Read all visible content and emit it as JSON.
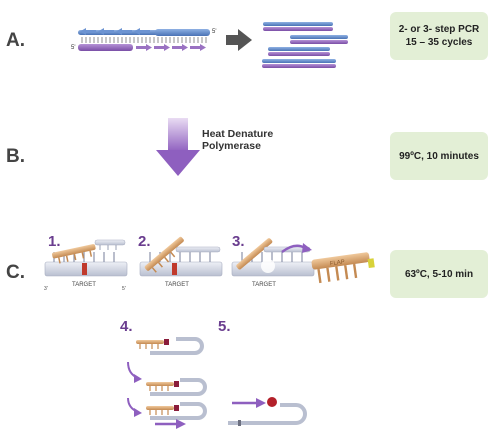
{
  "stages": [
    {
      "letter": "A.",
      "conditions": [
        "2- or 3- step PCR",
        "15 – 35 cycles"
      ]
    },
    {
      "letter": "B.",
      "conditions": [
        "99ºC, 10 minutes"
      ]
    },
    {
      "letter": "C.",
      "conditions": [
        "63ºC, 5-10 min"
      ]
    }
  ],
  "heat": {
    "line1": "Heat Denature",
    "line2": "Polymerase"
  },
  "steps": [
    "1.",
    "2.",
    "3.",
    "4.",
    "5."
  ],
  "strand_labels": {
    "five_prime": "5'",
    "three_prime": "3'",
    "target": "TARGET",
    "flap": "FLAP"
  },
  "colors": {
    "blue_strand": "#5b86c8",
    "purple_strand": "#8a5fb3",
    "probe_tan": "#d9a874",
    "condition_box": "#e3efd6",
    "step_number": "#6a3d8f"
  }
}
